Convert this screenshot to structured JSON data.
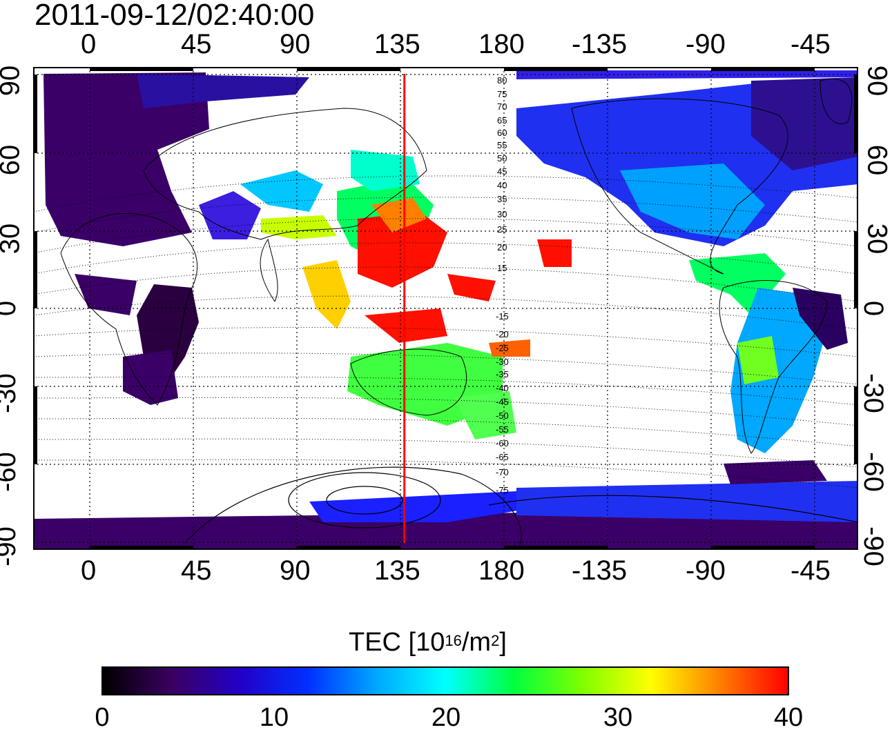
{
  "timestamp": "2011-09-12/02:40:00",
  "x_ticks_top": [
    "0",
    "45",
    "90",
    "135",
    "180",
    "-135",
    "-90",
    "-45"
  ],
  "x_ticks_bottom": [
    "0",
    "45",
    "90",
    "135",
    "180",
    "-135",
    "-90",
    "-45"
  ],
  "y_ticks_left": [
    "90",
    "60",
    "30",
    "0",
    "-30",
    "-60",
    "-90"
  ],
  "y_ticks_right": [
    "90",
    "60",
    "30",
    "0",
    "-30",
    "-60",
    "-90"
  ],
  "maglat_labels_north": [
    "80",
    "75",
    "70",
    "65",
    "60",
    "55",
    "50",
    "45",
    "40",
    "35",
    "30",
    "25",
    "20",
    "15"
  ],
  "maglat_labels_south": [
    "-15",
    "-20",
    "-25",
    "-30",
    "-35",
    "-40",
    "-45",
    "-50",
    "-55",
    "-60",
    "-65",
    "-70",
    "-75"
  ],
  "colorbar": {
    "title_main": "TEC  [10",
    "title_sup1": "16",
    "title_mid": "/m",
    "title_sup2": "2",
    "title_end": "]",
    "labels": [
      "0",
      "10",
      "20",
      "30",
      "40"
    ],
    "min": 0,
    "max": 40,
    "colors": [
      "#000000",
      "#3a0060",
      "#2200c8",
      "#0030ff",
      "#00a8ff",
      "#00ffff",
      "#00ff40",
      "#7fff00",
      "#ffff00",
      "#ff8000",
      "#ff0000"
    ]
  },
  "marker_longitude": 140,
  "marker_color": "#ff0000",
  "map_extent": {
    "lon_min": -22,
    "lon_max": 338,
    "lat_min": -93,
    "lat_max": 93
  }
}
